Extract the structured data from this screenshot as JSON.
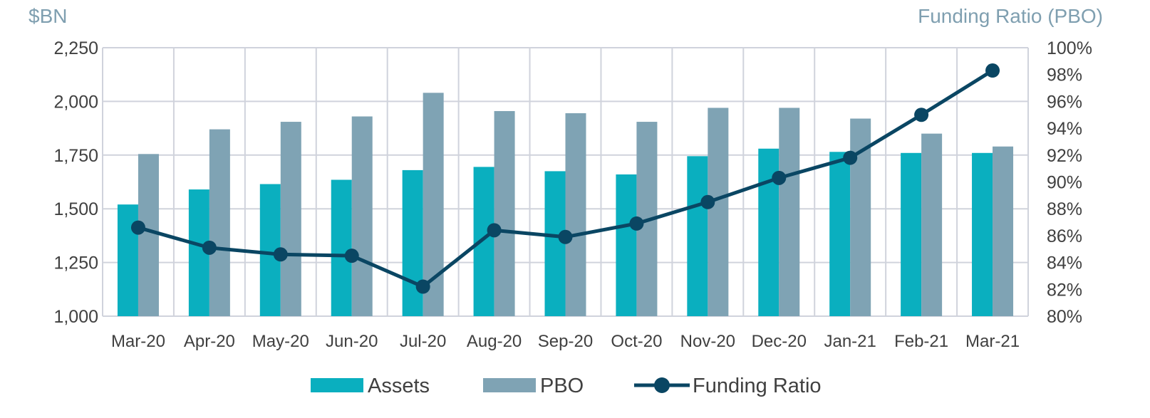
{
  "chart_data": {
    "type": "bar",
    "categories": [
      "Mar-20",
      "Apr-20",
      "May-20",
      "Jun-20",
      "Jul-20",
      "Aug-20",
      "Sep-20",
      "Oct-20",
      "Nov-20",
      "Dec-20",
      "Jan-21",
      "Feb-21",
      "Mar-21"
    ],
    "series": [
      {
        "name": "Assets",
        "type": "bar",
        "axis": "left",
        "color": "#0aafbf",
        "values": [
          1520,
          1590,
          1615,
          1635,
          1680,
          1695,
          1675,
          1660,
          1745,
          1780,
          1765,
          1760,
          1760
        ]
      },
      {
        "name": "PBO",
        "type": "bar",
        "axis": "left",
        "color": "#7fa3b4",
        "values": [
          1755,
          1870,
          1905,
          1930,
          2040,
          1955,
          1945,
          1905,
          1970,
          1970,
          1920,
          1850,
          1790
        ]
      },
      {
        "name": "Funding Ratio",
        "type": "line",
        "axis": "right",
        "color": "#0a4663",
        "values": [
          86.6,
          85.1,
          84.6,
          84.5,
          82.2,
          86.4,
          85.9,
          86.9,
          88.5,
          90.3,
          91.8,
          95.0,
          98.3
        ]
      }
    ],
    "ylabel_left": "$BN",
    "ylabel_right": "Funding Ratio (PBO)",
    "ylim_left": [
      1000,
      2250
    ],
    "yticks_left": [
      1000,
      1250,
      1500,
      1750,
      2000,
      2250
    ],
    "ytick_labels_left": [
      "1,000",
      "1,250",
      "1,500",
      "1,750",
      "2,000",
      "2,250"
    ],
    "ylim_right": [
      80,
      100
    ],
    "yticks_right": [
      80,
      82,
      84,
      86,
      88,
      90,
      92,
      94,
      96,
      98,
      100
    ],
    "ytick_labels_right": [
      "80%",
      "82%",
      "84%",
      "86%",
      "88%",
      "90%",
      "92%",
      "94%",
      "96%",
      "98%",
      "100%"
    ],
    "grid": true,
    "legend_position": "bottom"
  }
}
